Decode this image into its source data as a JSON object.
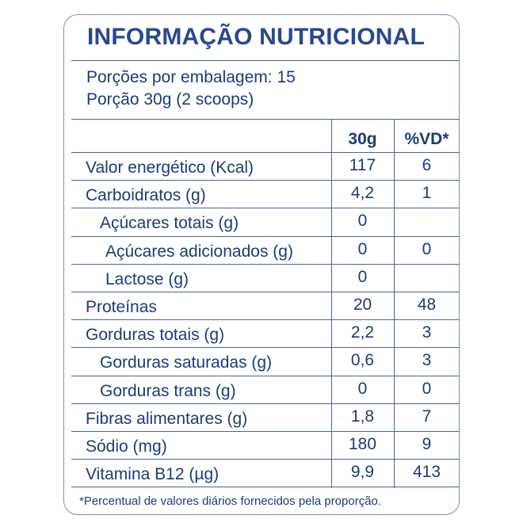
{
  "title": "INFORMAÇÃO NUTRICIONAL",
  "servings_per_package": "Porções por embalagem: 15",
  "serving_size": "Porção 30g (2 scoops)",
  "columns": {
    "amount": "30g",
    "dv": "%VD*"
  },
  "rows": [
    {
      "label": "Valor energético (Kcal)",
      "amount": "117",
      "dv": "6",
      "indent": 0
    },
    {
      "label": "Carboidratos (g)",
      "amount": "4,2",
      "dv": "1",
      "indent": 0
    },
    {
      "label": "Açúcares totais (g)",
      "amount": "0",
      "dv": "",
      "indent": 1
    },
    {
      "label": "Açúcares adicionados (g)",
      "amount": "0",
      "dv": "0",
      "indent": 2
    },
    {
      "label": "Lactose (g)",
      "amount": "0",
      "dv": "",
      "indent": 2
    },
    {
      "label": "Proteínas",
      "amount": "20",
      "dv": "48",
      "indent": 0
    },
    {
      "label": "Gorduras totais (g)",
      "amount": "2,2",
      "dv": "3",
      "indent": 0
    },
    {
      "label": "Gorduras saturadas (g)",
      "amount": "0,6",
      "dv": "3",
      "indent": 1
    },
    {
      "label": "Gorduras trans (g)",
      "amount": "0",
      "dv": "0",
      "indent": 1
    },
    {
      "label": "Fibras alimentares (g)",
      "amount": "1,8",
      "dv": "7",
      "indent": 0
    },
    {
      "label": "Sódio (mg)",
      "amount": "180",
      "dv": "9",
      "indent": 0
    },
    {
      "label": "Vitamina B12 (µg)",
      "amount": "9,9",
      "dv": "413",
      "indent": 0
    }
  ],
  "footnote": "*Percentual de valores diários fornecidos pela proporção.",
  "colors": {
    "text": "#1f3a78",
    "title": "#2a4790",
    "rule": "#4a63a0"
  }
}
